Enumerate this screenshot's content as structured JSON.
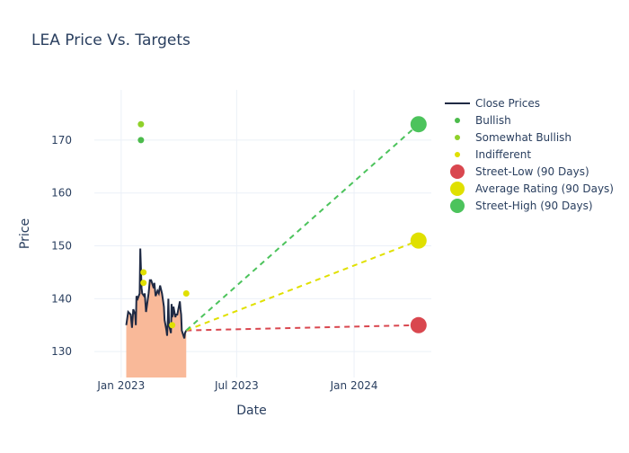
{
  "chart_data": {
    "type": "line",
    "title": "LEA Price Vs. Targets",
    "xlabel": "Date",
    "ylabel": "Price",
    "xlim": [
      "2022-11-20",
      "2024-05-01"
    ],
    "ylim": [
      125.1,
      179.5
    ],
    "grid": true,
    "legend_position": "right",
    "x_ticks": [
      {
        "date": "2023-01-01",
        "label": "Jan 2023"
      },
      {
        "date": "2023-07-01",
        "label": "Jul 2023"
      },
      {
        "date": "2024-01-01",
        "label": "Jan 2024"
      }
    ],
    "y_ticks": [
      130,
      140,
      150,
      160,
      170
    ],
    "close_prices": {
      "name": "Close Prices",
      "color": "#1f2a44",
      "fill": "#f9b999",
      "x": [
        "2023-01-09",
        "2023-01-12",
        "2023-01-16",
        "2023-01-18",
        "2023-01-20",
        "2023-01-23",
        "2023-01-24",
        "2023-01-25",
        "2023-01-27",
        "2023-01-30",
        "2023-01-31",
        "2023-02-02",
        "2023-02-03",
        "2023-02-06",
        "2023-02-07",
        "2023-02-09",
        "2023-02-13",
        "2023-02-15",
        "2023-02-17",
        "2023-02-21",
        "2023-02-22",
        "2023-02-24",
        "2023-02-27",
        "2023-03-01",
        "2023-03-03",
        "2023-03-06",
        "2023-03-09",
        "2023-03-10",
        "2023-03-13",
        "2023-03-14",
        "2023-03-15",
        "2023-03-16",
        "2023-03-17",
        "2023-03-20",
        "2023-03-21",
        "2023-03-22",
        "2023-03-23",
        "2023-03-24",
        "2023-03-27",
        "2023-03-28",
        "2023-03-30",
        "2023-04-03",
        "2023-04-04",
        "2023-04-05",
        "2023-04-06",
        "2023-04-10",
        "2023-04-11",
        "2023-04-13"
      ],
      "y": [
        135,
        137.5,
        137,
        134.5,
        138,
        137,
        135,
        140.5,
        140,
        141,
        149.5,
        142,
        141,
        140.5,
        141,
        137.5,
        141,
        143.5,
        143.5,
        142,
        143,
        140.5,
        141.5,
        141,
        142.5,
        141,
        138.5,
        136,
        134,
        133,
        135.5,
        140,
        135,
        133.5,
        139,
        136.5,
        137,
        138.5,
        136.5,
        137,
        137,
        139.5,
        138,
        137,
        134,
        132.5,
        133.5,
        134
      ]
    },
    "ratings": [
      {
        "name": "Bullish",
        "color": "#4cbb4c",
        "points": [
          {
            "x": "2023-02-01",
            "y": 170
          }
        ]
      },
      {
        "name": "Somewhat Bullish",
        "color": "#8fd12a",
        "points": [
          {
            "x": "2023-02-01",
            "y": 173
          }
        ]
      },
      {
        "name": "Indifferent",
        "color": "#e0e000",
        "points": [
          {
            "x": "2023-02-05",
            "y": 145
          },
          {
            "x": "2023-02-05",
            "y": 143
          },
          {
            "x": "2023-03-22",
            "y": 135
          },
          {
            "x": "2023-04-13",
            "y": 141
          }
        ]
      }
    ],
    "targets": [
      {
        "name": "Street-Low (90 Days)",
        "color": "#d9474f",
        "from": {
          "x": "2023-04-13",
          "y": 134
        },
        "to": {
          "x": "2024-04-11",
          "y": 135
        }
      },
      {
        "name": "Average Rating (90 Days)",
        "color": "#e0e000",
        "from": {
          "x": "2023-04-13",
          "y": 134
        },
        "to": {
          "x": "2024-04-11",
          "y": 151
        }
      },
      {
        "name": "Street-High (90 Days)",
        "color": "#4cc35c",
        "from": {
          "x": "2023-04-13",
          "y": 134
        },
        "to": {
          "x": "2024-04-11",
          "y": 173
        }
      }
    ]
  }
}
